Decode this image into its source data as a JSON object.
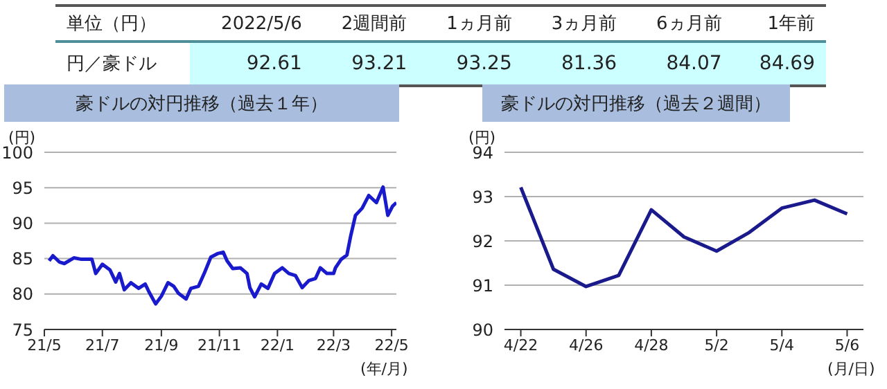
{
  "chart_data": [
    {
      "type": "other",
      "title": "単位（円）",
      "categories": [
        "2022/5/6",
        "2週間前",
        "1ヵ月前",
        "3ヵ月前",
        "6ヵ月前",
        "1年前"
      ],
      "series": [
        {
          "name": "円／豪ドル",
          "color": "#ccffff",
          "values": [
            92.61,
            93.21,
            93.25,
            81.36,
            84.07,
            84.69
          ]
        }
      ],
      "data_labels": true
    },
    {
      "type": "line",
      "title": "豪ドルの対円推移（過去１年）",
      "ylabel": "(円)",
      "xlabel": "(年/月)",
      "x": [
        "2021-05-06",
        "2021-05-10",
        "2021-05-17",
        "2021-05-22",
        "2021-06-01",
        "2021-06-09",
        "2021-06-20",
        "2021-06-24",
        "2021-07-01",
        "2021-07-09",
        "2021-07-15",
        "2021-07-19",
        "2021-07-24",
        "2021-07-31",
        "2021-08-08",
        "2021-08-15",
        "2021-08-19",
        "2021-08-26",
        "2021-09-01",
        "2021-09-08",
        "2021-09-14",
        "2021-09-19",
        "2021-09-27",
        "2021-10-02",
        "2021-10-10",
        "2021-10-16",
        "2021-10-23",
        "2021-10-30",
        "2021-11-05",
        "2021-11-09",
        "2021-11-15",
        "2021-11-23",
        "2021-11-30",
        "2021-12-03",
        "2021-12-08",
        "2021-12-15",
        "2021-12-22",
        "2021-12-29",
        "2022-01-06",
        "2022-01-13",
        "2022-01-20",
        "2022-01-27",
        "2022-02-03",
        "2022-02-10",
        "2022-02-15",
        "2022-02-22",
        "2022-03-01",
        "2022-03-03",
        "2022-03-09",
        "2022-03-15",
        "2022-03-19",
        "2022-03-24",
        "2022-03-31",
        "2022-04-07",
        "2022-04-15",
        "2022-04-22",
        "2022-04-27",
        "2022-05-02",
        "2022-05-06"
      ],
      "series": [
        {
          "color": "#1a1acd",
          "values": [
            84.7,
            85.4,
            84.5,
            84.3,
            85.1,
            84.9,
            84.9,
            82.9,
            84.2,
            83.4,
            81.7,
            82.9,
            80.6,
            81.6,
            80.8,
            81.4,
            80.3,
            78.6,
            79.7,
            81.6,
            81.1,
            80.1,
            79.3,
            80.8,
            81.1,
            82.9,
            85.2,
            85.7,
            85.9,
            84.7,
            83.6,
            83.7,
            82.9,
            80.9,
            79.6,
            81.4,
            80.8,
            82.9,
            83.7,
            82.9,
            82.6,
            80.9,
            81.9,
            82.2,
            83.7,
            82.9,
            82.9,
            83.7,
            84.9,
            85.5,
            88.2,
            91.1,
            92.1,
            93.9,
            92.9,
            95.1,
            91.1,
            92.4,
            92.9
          ]
        }
      ],
      "xlim": [
        "2021-05-01",
        "2022-05-06"
      ],
      "xticks": [
        {
          "value": "2021-05-01",
          "label": "21/5"
        },
        {
          "value": "2021-07-01",
          "label": "21/7"
        },
        {
          "value": "2021-09-01",
          "label": "21/9"
        },
        {
          "value": "2021-11-01",
          "label": "21/11"
        },
        {
          "value": "2022-01-01",
          "label": "22/1"
        },
        {
          "value": "2022-03-01",
          "label": "22/3"
        },
        {
          "value": "2022-05-01",
          "label": "22/5"
        }
      ],
      "ylim": [
        75,
        100
      ],
      "yticks": [
        75,
        80,
        85,
        90,
        95,
        100
      ],
      "grid": "y"
    },
    {
      "type": "line",
      "title": "豪ドルの対円推移（過去２週間）",
      "ylabel": "(円)",
      "xlabel": "(月/日)",
      "categories": [
        "4/22",
        null,
        "4/26",
        null,
        "4/28",
        null,
        "5/2",
        null,
        "5/4",
        null,
        "5/6"
      ],
      "series": [
        {
          "color": "#1a1a8c",
          "values": [
            93.21,
            91.36,
            90.97,
            91.22,
            92.7,
            92.09,
            91.77,
            92.19,
            92.74,
            92.92,
            92.61
          ]
        }
      ],
      "ylim": [
        90,
        94
      ],
      "yticks": [
        90,
        91,
        92,
        93,
        94
      ],
      "grid": "y"
    }
  ]
}
